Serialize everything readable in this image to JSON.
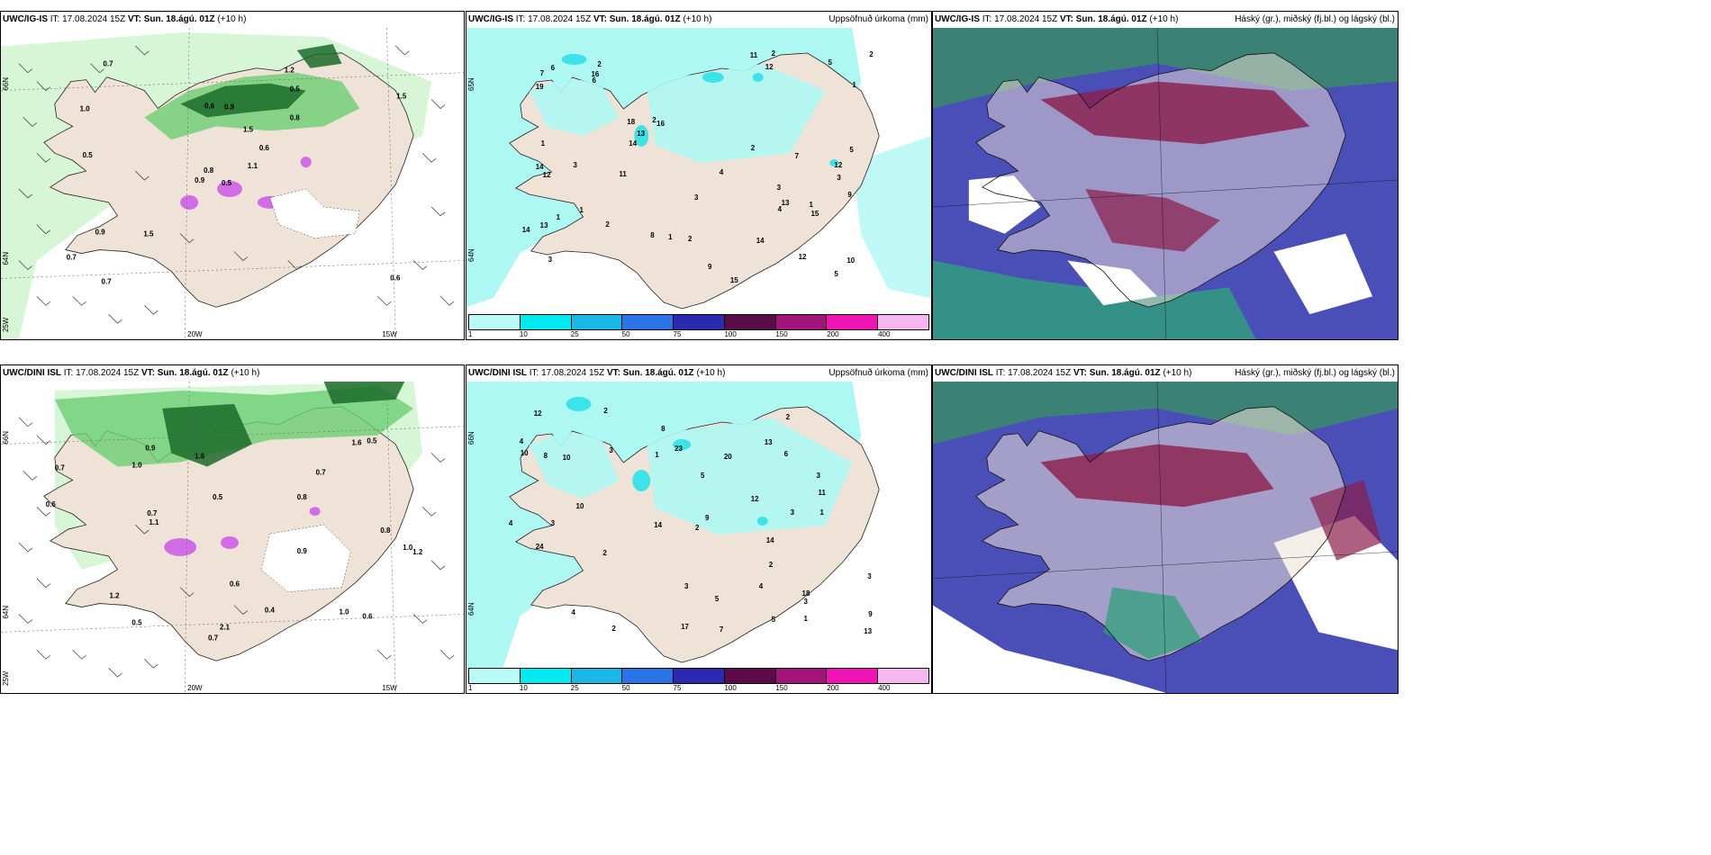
{
  "colors": {
    "land": "#efe2d6",
    "light_green": "#c6f2c4",
    "mid_green": "#6ccf73",
    "dark_green": "#1b6b2a",
    "magenta": "#d26be6",
    "precip_light": "#aef8f4",
    "precip_cyan": "#3ce3e8",
    "cloud_high": "#8b1d4a",
    "cloud_mid": "#4a4fb8",
    "cloud_low": "#2fa07a"
  },
  "top": {
    "left": {
      "model": "UWC/IG-IS",
      "it_label": "IT:",
      "it_value": "17.08.2024 15Z",
      "vt_label": "VT:",
      "vt_value": "Sun. 18.ágú. 01Z",
      "lead": "(+10 h)",
      "lon_labels": [
        "20W",
        "15W"
      ],
      "lat_labels": [
        "66N",
        "64N",
        "25W"
      ],
      "values": [
        "0.5",
        "1.0",
        "0.8",
        "0.7",
        "0.6",
        "1.5",
        "1.2",
        "0.9",
        "0.5",
        "1.1",
        "0.7",
        "0.6",
        "0.5",
        "1.5",
        "0.9",
        "0.8",
        "0.7",
        "0.6",
        "1.5",
        "0.9"
      ]
    },
    "middle": {
      "model": "UWC/IG-IS",
      "it_label": "IT:",
      "it_value": "17.08.2024 15Z",
      "vt_label": "VT:",
      "vt_value": "Sun. 18.ágú. 01Z",
      "lead": "(+10 h)",
      "title": "Uppsöfnuð úrkoma (mm)",
      "lat_labels": [
        "65N",
        "64N"
      ],
      "values": [
        "3",
        "3",
        "3",
        "2",
        "16",
        "12",
        "13",
        "12",
        "18",
        "15",
        "19",
        "14",
        "7",
        "10",
        "8",
        "5",
        "3",
        "4",
        "2",
        "1",
        "2",
        "5",
        "14",
        "9",
        "11",
        "16",
        "13",
        "12",
        "6",
        "7",
        "9",
        "14",
        "13",
        "11",
        "12",
        "15",
        "4",
        "3",
        "2",
        "1",
        "1",
        "2",
        "5",
        "1",
        "1",
        "2",
        "14",
        "6",
        "2",
        "1"
      ],
      "legend_ticks": [
        "1",
        "10",
        "25",
        "50",
        "75",
        "100",
        "150",
        "200",
        "400"
      ]
    },
    "right": {
      "model": "UWC/IG-IS",
      "it_label": "IT:",
      "it_value": "17.08.2024 15Z",
      "vt_label": "VT:",
      "vt_value": "Sun. 18.ágú. 01Z",
      "lead": "(+10 h)",
      "title": "Háský (gr.), miðský (fj.bl.) og lágský (bl.)"
    }
  },
  "bottom": {
    "left": {
      "model": "UWC/DINI ISL",
      "it_label": "IT:",
      "it_value": "17.08.2024 15Z",
      "vt_label": "VT:",
      "vt_value": "Sun. 18.ágú. 01Z",
      "lead": "(+10 h)",
      "lon_labels": [
        "20W",
        "15W"
      ],
      "lat_labels": [
        "66N",
        "64N",
        "25W"
      ],
      "values": [
        "0.7",
        "1.0",
        "0.8",
        "2.1",
        "1.6",
        "0.7",
        "0.9",
        "1.1",
        "0.5",
        "1.2",
        "1.0",
        "0.9",
        "0.7",
        "1.2",
        "0.6",
        "0.5",
        "0.7",
        "1.6",
        "0.6",
        "0.4",
        "1.0",
        "0.8",
        "0.5",
        "0.6"
      ]
    },
    "middle": {
      "model": "UWC/DINI ISL",
      "it_label": "IT:",
      "it_value": "17.08.2024 15Z",
      "vt_label": "VT:",
      "vt_value": "Sun. 18.ágú. 01Z",
      "lead": "(+10 h)",
      "title": "Uppsöfnuð úrkoma (mm)",
      "lat_labels": [
        "66N",
        "64N"
      ],
      "values": [
        "5",
        "3",
        "4",
        "3",
        "17",
        "23",
        "7",
        "13",
        "10",
        "24",
        "18",
        "20",
        "14",
        "8",
        "9",
        "6",
        "3",
        "4",
        "5",
        "2",
        "10",
        "3",
        "12",
        "14",
        "11",
        "10",
        "12",
        "13",
        "9",
        "8",
        "4",
        "3",
        "2",
        "1",
        "2",
        "1",
        "2",
        "3",
        "5",
        "1",
        "2",
        "4",
        "3",
        "2"
      ],
      "legend_ticks": [
        "1",
        "10",
        "25",
        "50",
        "75",
        "100",
        "150",
        "200",
        "400"
      ]
    },
    "right": {
      "model": "UWC/DINI ISL",
      "it_label": "IT:",
      "it_value": "17.08.2024 15Z",
      "vt_label": "VT:",
      "vt_value": "Sun. 18.ágú. 01Z",
      "lead": "(+10 h)",
      "title": "Háský (gr.), miðský (fj.bl.) og lágský (bl.)"
    }
  },
  "legend_colors": [
    "#b8fbf7",
    "#00eaf0",
    "#19b8e8",
    "#2b73e6",
    "#2a2ab0",
    "#5c0b4a",
    "#a2147a",
    "#f014b4",
    "#f6b6f0"
  ]
}
